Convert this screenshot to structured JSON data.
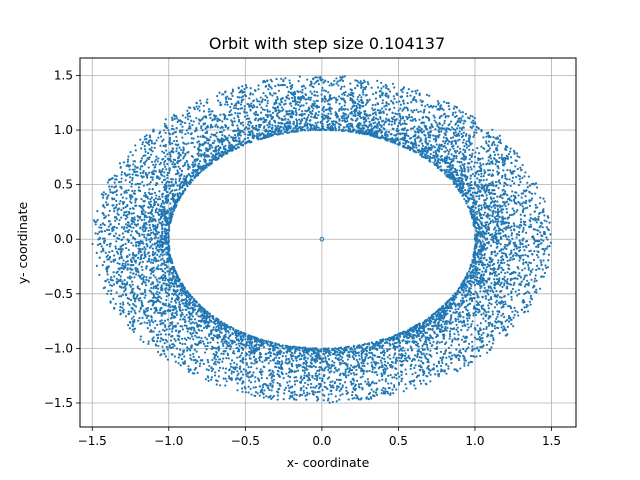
{
  "chart_data": {
    "type": "scatter",
    "title": "Orbit with step size 0.104137",
    "xlabel": "x- coordinate",
    "ylabel": "y- coordinate",
    "xlim": [
      -1.58,
      1.66
    ],
    "ylim": [
      -1.72,
      1.66
    ],
    "xticks": [
      -1.5,
      -1.0,
      -0.5,
      0.0,
      0.5,
      1.0,
      1.5
    ],
    "xtick_labels": [
      "−1.5",
      "−1.0",
      "−0.5",
      "0.0",
      "0.5",
      "1.0",
      "1.5"
    ],
    "yticks": [
      -1.5,
      -1.0,
      -0.5,
      0.0,
      0.5,
      1.0,
      1.5
    ],
    "ytick_labels": [
      "−1.5",
      "−1.0",
      "−0.5",
      "0.0",
      "0.5",
      "1.0",
      "1.5"
    ],
    "grid": true,
    "legend": "none",
    "series": [
      {
        "color": "#1f77b4",
        "marker": "dot",
        "description_of_distribution": "dense band of points forming an annulus: inner boundary radius ~1.0, outer boundary radius ~1.5, points densest near the inner ring",
        "inner_radius": 1.0,
        "outer_radius": 1.5,
        "point_count": 9000,
        "center_point": [
          0.0,
          0.0
        ]
      }
    ]
  }
}
